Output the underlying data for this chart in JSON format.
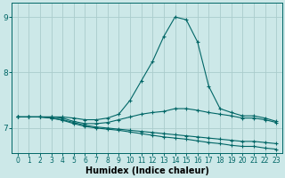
{
  "bg_color": "#cce8e8",
  "grid_color": "#aacccc",
  "line_color": "#006666",
  "marker": "+",
  "xlabel": "Humidex (Indice chaleur)",
  "xlabel_fontsize": 7,
  "ytick_labels": [
    "7",
    "8",
    "9"
  ],
  "ytick_vals": [
    7.0,
    8.0,
    9.0
  ],
  "xtick_vals": [
    0,
    1,
    2,
    3,
    4,
    5,
    6,
    7,
    8,
    9,
    10,
    11,
    12,
    13,
    14,
    15,
    16,
    17,
    18,
    19,
    20,
    21,
    22,
    23
  ],
  "xlim": [
    -0.5,
    23.5
  ],
  "ylim": [
    6.55,
    9.25
  ],
  "series": [
    {
      "x": [
        0,
        1,
        2,
        3,
        4,
        5,
        6,
        7,
        8,
        9,
        10,
        11,
        12,
        13,
        14,
        15,
        16,
        17,
        18,
        19,
        20,
        21,
        22,
        23
      ],
      "y": [
        7.2,
        7.2,
        7.2,
        7.2,
        7.2,
        7.18,
        7.15,
        7.15,
        7.18,
        7.25,
        7.5,
        7.85,
        8.2,
        8.65,
        9.0,
        8.95,
        8.55,
        7.75,
        7.35,
        7.28,
        7.22,
        7.22,
        7.18,
        7.12
      ]
    },
    {
      "x": [
        0,
        1,
        2,
        3,
        4,
        5,
        6,
        7,
        8,
        9,
        10,
        11,
        12,
        13,
        14,
        15,
        16,
        17,
        18,
        19,
        20,
        21,
        22,
        23
      ],
      "y": [
        7.2,
        7.2,
        7.2,
        7.2,
        7.18,
        7.12,
        7.08,
        7.08,
        7.1,
        7.15,
        7.2,
        7.25,
        7.28,
        7.3,
        7.35,
        7.35,
        7.32,
        7.28,
        7.25,
        7.22,
        7.18,
        7.18,
        7.15,
        7.1
      ]
    },
    {
      "x": [
        0,
        1,
        2,
        3,
        4,
        5,
        6,
        7,
        8,
        9,
        10,
        11,
        12,
        13,
        14,
        15,
        16,
        17,
        18,
        19,
        20,
        21,
        22,
        23
      ],
      "y": [
        7.2,
        7.2,
        7.2,
        7.18,
        7.15,
        7.1,
        7.05,
        7.02,
        7.0,
        6.98,
        6.96,
        6.94,
        6.92,
        6.9,
        6.88,
        6.86,
        6.84,
        6.82,
        6.8,
        6.78,
        6.76,
        6.76,
        6.74,
        6.72
      ]
    },
    {
      "x": [
        0,
        1,
        2,
        3,
        4,
        5,
        6,
        7,
        8,
        9,
        10,
        11,
        12,
        13,
        14,
        15,
        16,
        17,
        18,
        19,
        20,
        21,
        22,
        23
      ],
      "y": [
        7.2,
        7.2,
        7.2,
        7.18,
        7.14,
        7.08,
        7.03,
        7.0,
        6.98,
        6.96,
        6.93,
        6.9,
        6.87,
        6.84,
        6.82,
        6.8,
        6.77,
        6.74,
        6.72,
        6.69,
        6.67,
        6.67,
        6.64,
        6.62
      ]
    }
  ]
}
